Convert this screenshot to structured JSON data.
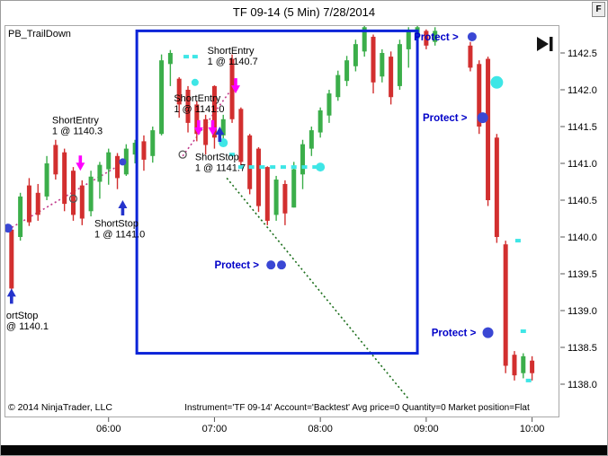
{
  "window": {
    "title": "TF 09-14 (5 Min) 7/28/2014",
    "indicator_label": "PB_TrailDown",
    "copyright": "© 2014 NinjaTrader, LLC",
    "status_line": "Instrument='TF 09-14' Account='Backtest' Avg price=0 Quantity=0 Market position=Flat",
    "corner_button": "F"
  },
  "colors": {
    "up_candle": "#3bae4a",
    "down_candle": "#d22f2f",
    "trail_mark": "#3ee6e6",
    "protect_text": "#0000c8",
    "protect_dot": "#3a47d4",
    "entry_arrow": "#ff00ff",
    "stop_arrow": "#2433cc",
    "box_border": "#0b24d8",
    "projection_line": "#1b6e1b",
    "trail_line": "#c23a8c"
  },
  "chart_data": {
    "type": "candlestick",
    "title": "TF 09-14 (5 Min) 7/28/2014",
    "instrument": "TF 09-14",
    "interval": "5 Min",
    "date": "7/28/2014",
    "y_axis": {
      "ticks": [
        "1142.5",
        "1142.0",
        "1141.5",
        "1141.0",
        "1140.5",
        "1140.0",
        "1139.5",
        "1139.0",
        "1138.5",
        "1138.0"
      ],
      "min": 1137.8,
      "max": 1142.9
    },
    "x_axis": {
      "ticks": [
        "06:00",
        "07:00",
        "08:00",
        "09:00",
        "10:00"
      ]
    },
    "candles": [
      [
        "05:00",
        1140.25,
        1140.3,
        1139.7,
        1139.75
      ],
      [
        "05:05",
        1140.1,
        1140.15,
        1139.2,
        1139.3
      ],
      [
        "05:10",
        1140.0,
        1140.6,
        1139.95,
        1140.55
      ],
      [
        "05:15",
        1140.7,
        1140.8,
        1140.15,
        1140.2
      ],
      [
        "05:20",
        1140.6,
        1140.72,
        1140.22,
        1140.3
      ],
      [
        "05:25",
        1140.55,
        1141.1,
        1140.5,
        1141.0
      ],
      [
        "05:30",
        1141.25,
        1141.32,
        1140.78,
        1140.85
      ],
      [
        "05:35",
        1141.15,
        1141.2,
        1140.35,
        1140.45
      ],
      [
        "05:40",
        1140.9,
        1140.95,
        1140.22,
        1140.3
      ],
      [
        "05:45",
        1140.7,
        1140.77,
        1140.16,
        1140.25
      ],
      [
        "05:50",
        1140.35,
        1140.9,
        1140.28,
        1140.82
      ],
      [
        "05:55",
        1140.75,
        1141.02,
        1140.52,
        1140.98
      ],
      [
        "06:00",
        1140.92,
        1141.2,
        1140.71,
        1141.15
      ],
      [
        "06:05",
        1141.1,
        1141.14,
        1140.65,
        1140.8
      ],
      [
        "06:10",
        1140.85,
        1141.26,
        1140.83,
        1141.2
      ],
      [
        "06:15",
        1141.12,
        1141.32,
        1141.0,
        1141.28
      ],
      [
        "06:20",
        1141.3,
        1141.38,
        1140.9,
        1141.05
      ],
      [
        "06:25",
        1141.1,
        1141.5,
        1141.01,
        1141.45
      ],
      [
        "06:30",
        1141.4,
        1142.48,
        1141.38,
        1142.4
      ],
      [
        "06:35",
        1142.35,
        1142.54,
        1142.05,
        1142.5
      ],
      [
        "06:40",
        1142.15,
        1142.17,
        1141.62,
        1141.8
      ],
      [
        "06:45",
        1142.0,
        1142.05,
        1141.42,
        1141.55
      ],
      [
        "06:50",
        1141.8,
        1141.85,
        1141.3,
        1141.4
      ],
      [
        "06:55",
        1141.6,
        1141.66,
        1141.12,
        1141.25
      ],
      [
        "07:00",
        1142.05,
        1142.06,
        1141.2,
        1141.35
      ],
      [
        "07:05",
        1141.38,
        1141.66,
        1141.3,
        1141.6
      ],
      [
        "07:10",
        1142.42,
        1142.48,
        1141.55,
        1141.6
      ],
      [
        "07:15",
        1141.74,
        1141.76,
        1140.95,
        1141.02
      ],
      [
        "07:20",
        1141.38,
        1141.4,
        1140.58,
        1140.65
      ],
      [
        "07:25",
        1141.2,
        1141.22,
        1140.34,
        1140.42
      ],
      [
        "07:30",
        1140.95,
        1140.96,
        1140.16,
        1140.22
      ],
      [
        "07:35",
        1140.3,
        1140.83,
        1140.22,
        1140.78
      ],
      [
        "07:40",
        1140.72,
        1140.77,
        1140.16,
        1140.32
      ],
      [
        "07:45",
        1140.4,
        1141.02,
        1140.4,
        1140.92
      ],
      [
        "07:50",
        1140.85,
        1141.32,
        1140.65,
        1141.26
      ],
      [
        "07:55",
        1141.2,
        1141.5,
        1141.1,
        1141.45
      ],
      [
        "08:00",
        1141.42,
        1141.76,
        1141.35,
        1141.72
      ],
      [
        "08:05",
        1141.65,
        1142.0,
        1141.55,
        1141.95
      ],
      [
        "08:10",
        1141.9,
        1142.26,
        1141.85,
        1142.2
      ],
      [
        "08:15",
        1142.12,
        1142.46,
        1142.05,
        1142.4
      ],
      [
        "08:20",
        1142.32,
        1142.68,
        1142.25,
        1142.62
      ],
      [
        "08:25",
        1142.52,
        1142.9,
        1142.45,
        1142.85
      ],
      [
        "08:30",
        1142.72,
        1142.75,
        1141.95,
        1142.1
      ],
      [
        "08:35",
        1142.18,
        1142.55,
        1142.1,
        1142.5
      ],
      [
        "08:40",
        1142.45,
        1142.52,
        1141.8,
        1141.9
      ],
      [
        "08:45",
        1142.05,
        1142.68,
        1142.0,
        1142.62
      ],
      [
        "08:50",
        1142.55,
        1142.85,
        1142.3,
        1142.8
      ],
      [
        "08:55",
        1142.7,
        1142.88,
        1142.6,
        1142.85
      ],
      [
        "09:00",
        1142.8,
        1142.82,
        1142.55,
        1142.6
      ],
      [
        "09:05",
        1142.65,
        1142.85,
        1142.6,
        1142.8
      ],
      [
        "09:25",
        1142.6,
        1142.65,
        1142.25,
        1142.3
      ],
      [
        "09:30",
        1142.35,
        1142.4,
        1141.4,
        1141.5
      ],
      [
        "09:35",
        1142.42,
        1142.45,
        1140.42,
        1140.5
      ],
      [
        "09:40",
        1141.35,
        1141.4,
        1139.92,
        1140.0
      ],
      [
        "09:45",
        1139.9,
        1139.95,
        1138.15,
        1138.25
      ],
      [
        "09:50",
        1138.4,
        1138.45,
        1138.05,
        1138.12
      ],
      [
        "09:55",
        1138.15,
        1138.42,
        1138.08,
        1138.38
      ],
      [
        "10:00",
        1138.32,
        1138.38,
        1138.05,
        1138.15
      ]
    ],
    "box": {
      "t1": "06:16",
      "p1": 1142.8,
      "t2": "08:55",
      "p2": 1138.42
    },
    "lines": [
      {
        "name": "trail-line-a",
        "color": "trail_line",
        "t1": "05:03",
        "p1": 1140.1,
        "t2": "06:08",
        "p2": 1141.0
      },
      {
        "name": "trail-line-b",
        "color": "trail_line",
        "t1": "06:42",
        "p1": 1141.1,
        "t2": "07:11",
        "p2": 1142.05
      },
      {
        "name": "projection-line",
        "color": "projection_line",
        "t1": "07:07",
        "p1": 1140.8,
        "t2": "08:50",
        "p2": 1137.8
      }
    ],
    "annotations": [
      {
        "lines": [
          "ShortEntry",
          "1 @ 1140.3"
        ],
        "t": "05:28",
        "p": 1141.65
      },
      {
        "lines": [
          "ShortEntry",
          "1 @ 1141.0"
        ],
        "t": "06:37",
        "p": 1141.95
      },
      {
        "lines": [
          "ShortEntry",
          "1 @ 1140.7"
        ],
        "t": "06:56",
        "p": 1142.6
      },
      {
        "lines": [
          "ShortStop",
          "1 @ 1141.0"
        ],
        "t": "05:52",
        "p": 1140.25
      },
      {
        "lines": [
          "ShortStop",
          "1 @ 1141.7"
        ],
        "t": "06:49",
        "p": 1141.15
      },
      {
        "lines": [
          "ortStop",
          "@ 1140.1"
        ],
        "t": "05:02",
        "p": 1139.0
      }
    ],
    "protect_labels": [
      {
        "text": "Protect >",
        "t": "08:53",
        "p": 1142.72,
        "dots": [
          {
            "t": "09:26",
            "r": 5
          }
        ]
      },
      {
        "text": "Protect >",
        "t": "08:58",
        "p": 1141.62,
        "dots": [
          {
            "t": "09:32",
            "r": 6
          }
        ]
      },
      {
        "text": "Protect >",
        "t": "07:00",
        "p": 1139.62,
        "dots": [
          {
            "t": "07:32",
            "r": 5
          },
          {
            "t": "07:38",
            "r": 5
          }
        ]
      },
      {
        "text": "Protect >",
        "t": "09:03",
        "p": 1138.7,
        "dots": [
          {
            "t": "09:35",
            "r": 6
          }
        ]
      }
    ],
    "arrows_down": [
      {
        "t": "05:44",
        "p": 1140.9
      },
      {
        "t": "06:51",
        "p": 1141.38
      },
      {
        "t": "06:59",
        "p": 1141.38
      },
      {
        "t": "07:12",
        "p": 1141.95
      }
    ],
    "arrows_up": [
      {
        "t": "05:05",
        "p": 1139.3
      },
      {
        "t": "06:08",
        "p": 1140.5
      },
      {
        "t": "07:03",
        "p": 1141.5
      }
    ],
    "trail_squares": [
      {
        "t": "06:44",
        "p": 1142.45
      },
      {
        "t": "06:49",
        "p": 1142.45
      },
      {
        "t": "07:10",
        "p": 1141.12
      },
      {
        "t": "07:15",
        "p": 1140.95
      },
      {
        "t": "07:21",
        "p": 1140.95
      },
      {
        "t": "07:27",
        "p": 1140.95
      },
      {
        "t": "07:33",
        "p": 1140.95
      },
      {
        "t": "07:39",
        "p": 1140.95
      },
      {
        "t": "07:45",
        "p": 1140.95
      },
      {
        "t": "07:51",
        "p": 1140.95
      },
      {
        "t": "07:57",
        "p": 1140.95
      },
      {
        "t": "09:52",
        "p": 1139.95
      },
      {
        "t": "09:55",
        "p": 1138.72
      },
      {
        "t": "09:58",
        "p": 1138.05
      }
    ],
    "trail_circles": [
      {
        "t": "06:49",
        "p": 1142.1,
        "r": 4
      },
      {
        "t": "07:05",
        "p": 1141.28,
        "r": 5
      },
      {
        "t": "08:00",
        "p": 1140.95,
        "r": 5
      },
      {
        "t": "09:40",
        "p": 1142.1,
        "r": 7
      }
    ],
    "open_circles": [
      {
        "t": "05:40",
        "p": 1140.52
      },
      {
        "t": "06:42",
        "p": 1141.12
      }
    ],
    "blue_dots": [
      {
        "t": "05:03",
        "p": 1140.12,
        "r": 5
      },
      {
        "t": "06:08",
        "p": 1141.02,
        "r": 4
      }
    ]
  }
}
